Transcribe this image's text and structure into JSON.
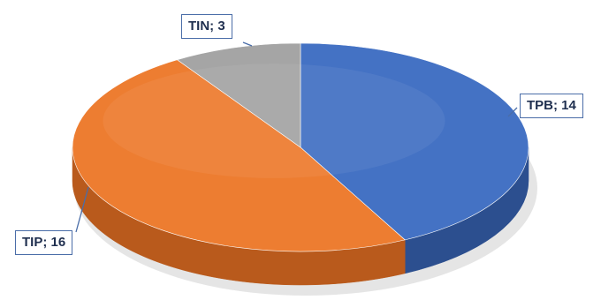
{
  "chart_data": {
    "type": "pie",
    "style": "3d",
    "title": "",
    "slices": [
      {
        "label": "TPB",
        "value": 14,
        "color": "#4472c4",
        "side_color": "#2c4f8f",
        "display": "TPB; 14"
      },
      {
        "label": "TIP",
        "value": 16,
        "color": "#ed7d31",
        "side_color": "#b95a1c",
        "display": "TIP; 16"
      },
      {
        "label": "TIN",
        "value": 3,
        "color": "#a5a5a5",
        "side_color": "#7d7d7d",
        "display": "TIN; 3"
      }
    ],
    "data_labels": "category; value",
    "legend": "none"
  }
}
